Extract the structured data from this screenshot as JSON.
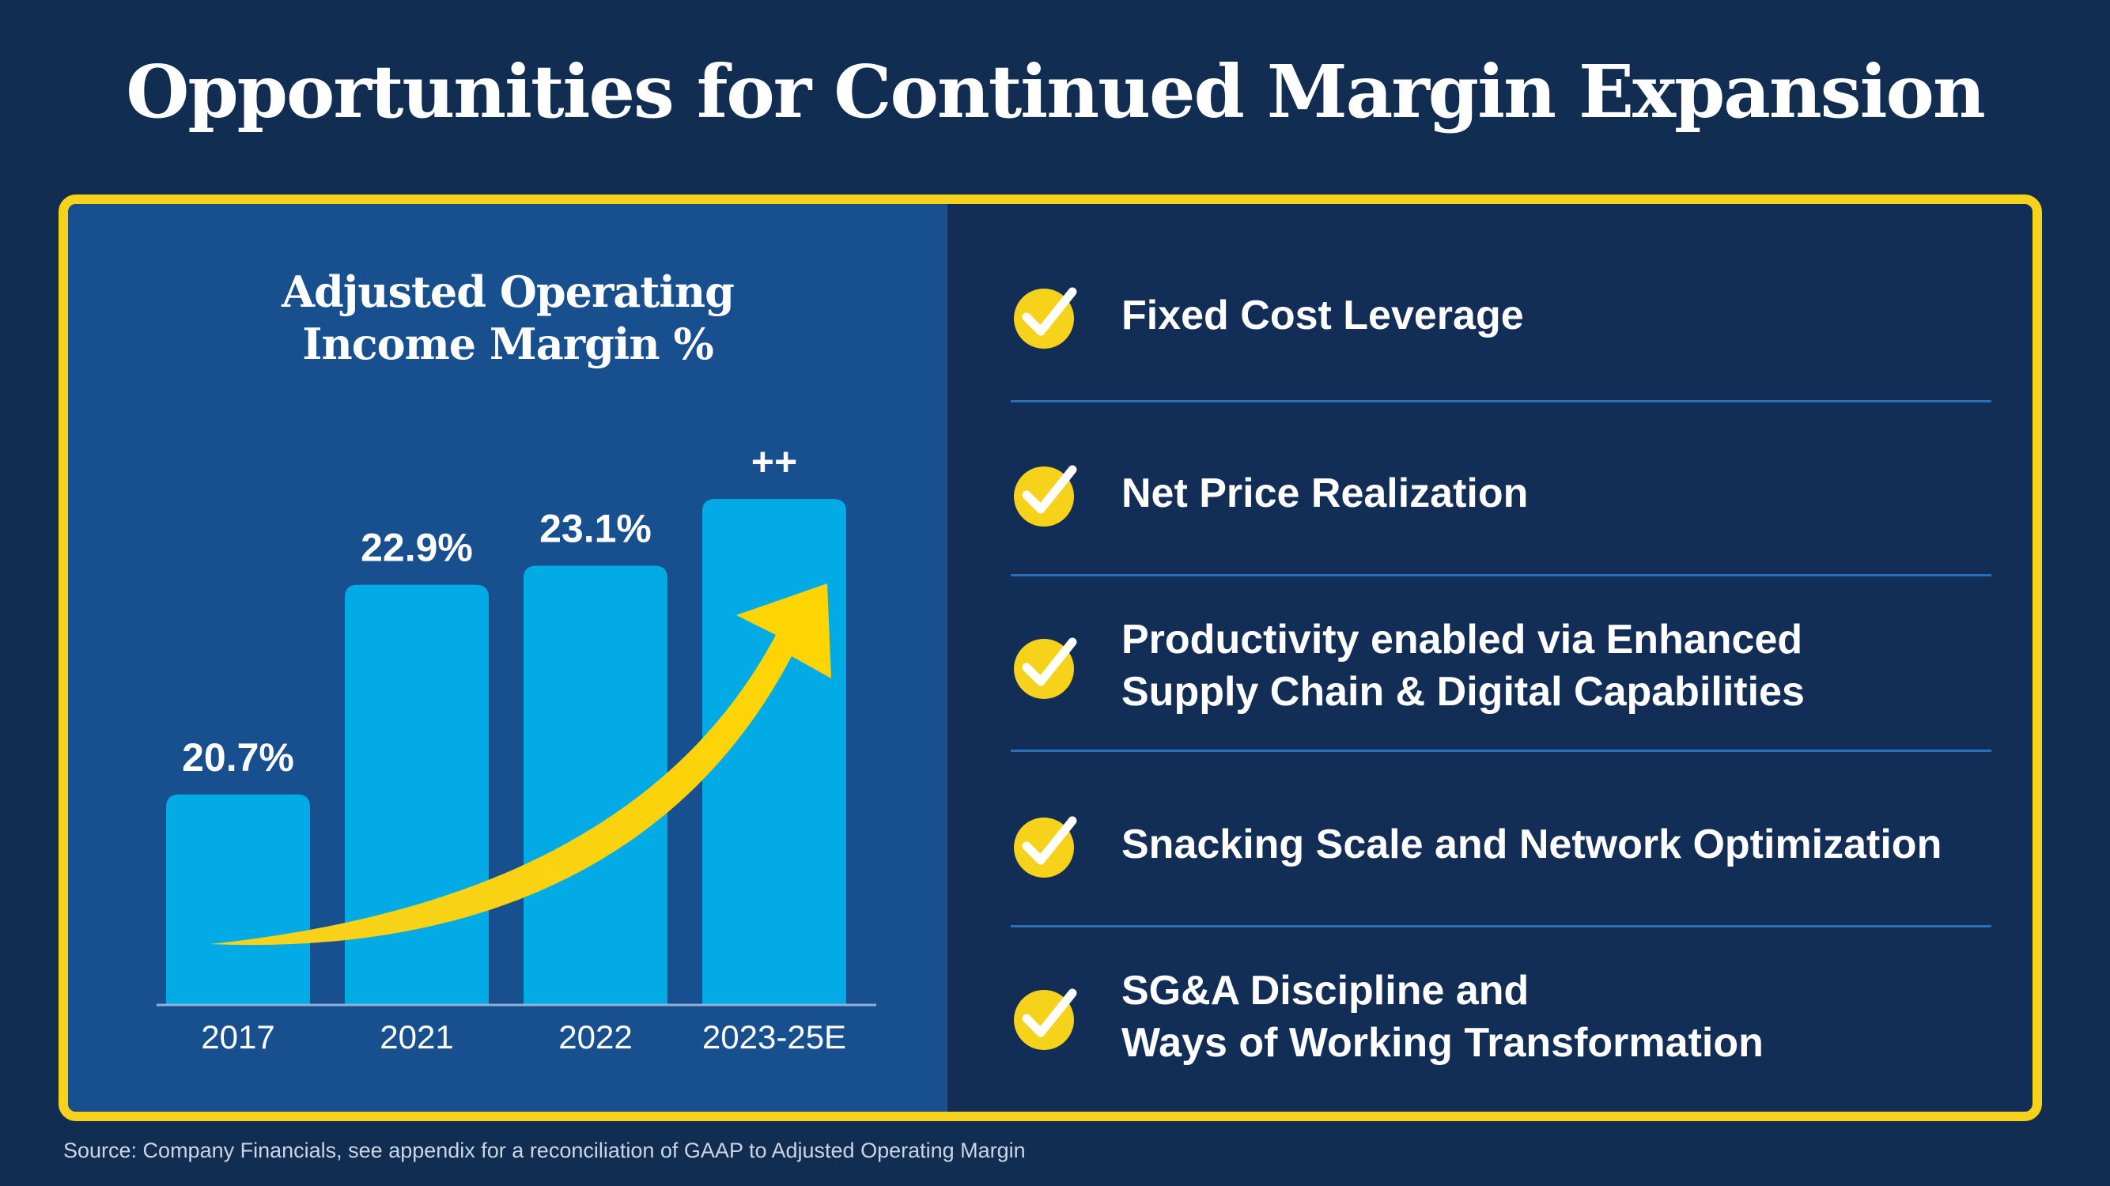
{
  "page": {
    "title": "Opportunities for Continued Margin Expansion",
    "source": "Source:  Company Financials, see appendix for a reconciliation of GAAP to Adjusted Operating Margin"
  },
  "chart_data": {
    "type": "bar",
    "title_line1": "Adjusted Operating",
    "title_line2": "Income Margin %",
    "categories": [
      "2017",
      "2021",
      "2022",
      "2023-25E"
    ],
    "values": [
      20.7,
      22.9,
      23.1,
      23.8
    ],
    "value_labels": [
      "20.7%",
      "22.9%",
      "23.1%",
      "++"
    ],
    "ylim": [
      18.5,
      24.0
    ],
    "annotation": "trend-arrow-up",
    "colors": {
      "bar": "#03abe6",
      "arrow": "#f6d21b"
    }
  },
  "drivers": {
    "items": [
      {
        "label": "Fixed Cost Leverage"
      },
      {
        "label": "Net Price Realization"
      },
      {
        "label": "Productivity enabled via Enhanced\nSupply Chain & Digital Capabilities"
      },
      {
        "label": "Snacking Scale and Network Optimization"
      },
      {
        "label": "SG&A Discipline and\nWays of Working Transformation"
      }
    ]
  },
  "colors": {
    "background": "#122d52",
    "panel": "#184f8f",
    "accent": "#f6d21b",
    "divider": "#2a6fba"
  }
}
